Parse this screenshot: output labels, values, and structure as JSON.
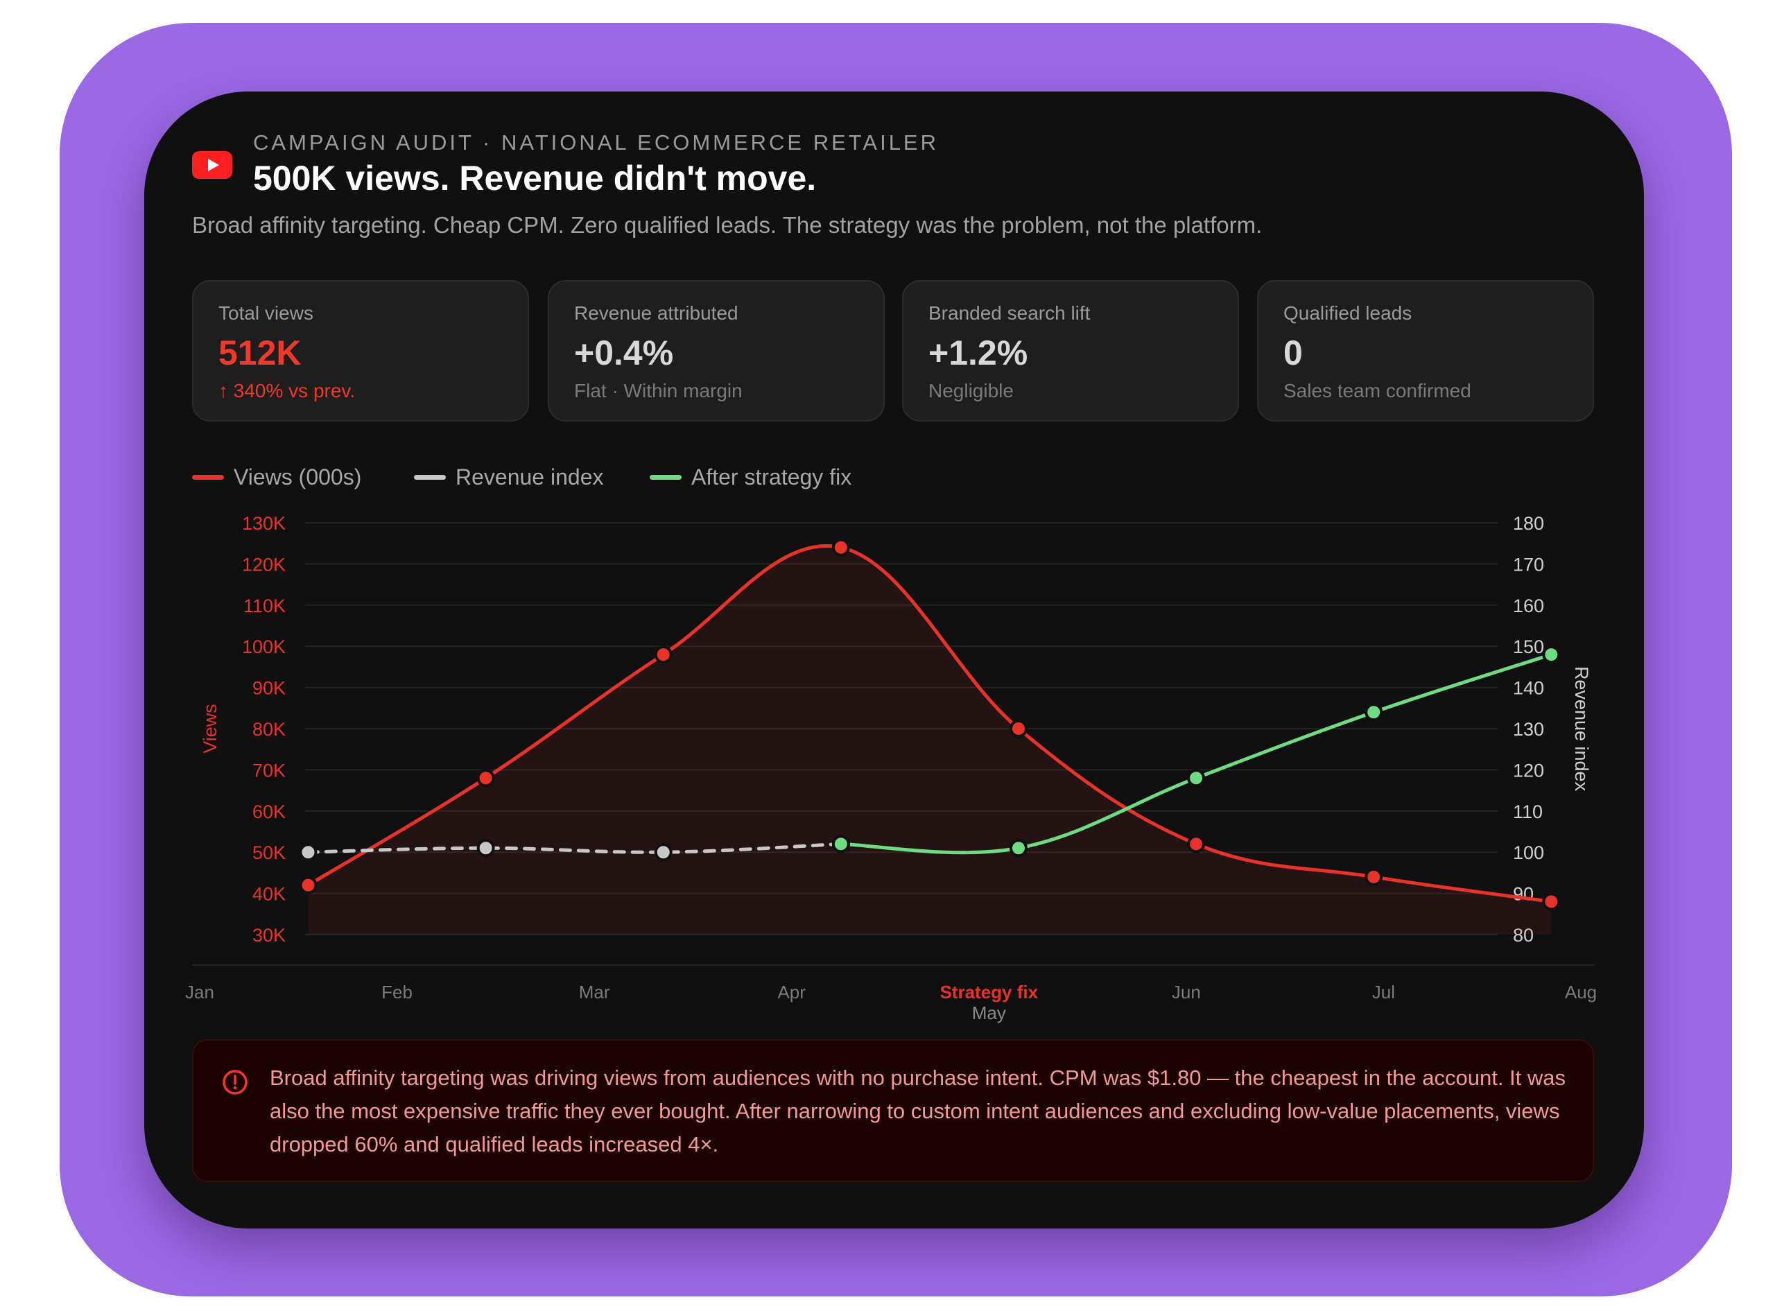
{
  "header": {
    "eyebrow": "CAMPAIGN AUDIT · NATIONAL ECOMMERCE RETAILER",
    "title": "500K views. Revenue didn't move.",
    "subtitle": "Broad affinity targeting. Cheap CPM. Zero qualified leads. The strategy was the problem, not the platform.",
    "logo_icon": "youtube-play-icon"
  },
  "stats": [
    {
      "label": "Total views",
      "value": "512K",
      "note": "↑ 340% vs prev."
    },
    {
      "label": "Revenue attributed",
      "value": "+0.4%",
      "note": "Flat · Within margin"
    },
    {
      "label": "Branded search lift",
      "value": "+1.2%",
      "note": "Negligible"
    },
    {
      "label": "Qualified leads",
      "value": "0",
      "note": "Sales team confirmed"
    }
  ],
  "legend": [
    {
      "label": "Views (000s)",
      "color": "#e8332a"
    },
    {
      "label": "Revenue index",
      "color": "#c8c8c8"
    },
    {
      "label": "After strategy fix",
      "color": "#6fdc84"
    }
  ],
  "chart_data": {
    "type": "line",
    "x_ticks": [
      "Jan",
      "Feb",
      "Mar",
      "Apr",
      "May",
      "Jun",
      "Jul",
      "Aug"
    ],
    "x_marker": {
      "label": "Strategy fix",
      "at": "May"
    },
    "left_axis": {
      "label": "Views",
      "min": 30,
      "max": 130,
      "step": 10,
      "tick_labels": [
        "30K",
        "40K",
        "50K",
        "60K",
        "70K",
        "80K",
        "90K",
        "100K",
        "110K",
        "120K",
        "130K"
      ]
    },
    "right_axis": {
      "label": "Revenue index",
      "min": 80,
      "max": 180,
      "step": 10,
      "tick_labels": [
        "80",
        "90",
        "100",
        "110",
        "120",
        "130",
        "140",
        "150",
        "160",
        "170",
        "180"
      ]
    },
    "series": [
      {
        "name": "Views (000s)",
        "axis": "left",
        "color": "#e8332a",
        "area": true,
        "points": [
          [
            0.55,
            42
          ],
          [
            1.45,
            68
          ],
          [
            2.35,
            98
          ],
          [
            3.25,
            124
          ],
          [
            4.15,
            80
          ],
          [
            5.05,
            52
          ],
          [
            5.95,
            44
          ],
          [
            6.85,
            38
          ]
        ]
      },
      {
        "name": "Revenue index",
        "axis": "right",
        "color": "#c8c8c8",
        "dashed": true,
        "points": [
          [
            0.55,
            100
          ],
          [
            1.45,
            101
          ],
          [
            2.35,
            100
          ],
          [
            3.25,
            102
          ]
        ]
      },
      {
        "name": "After strategy fix",
        "axis": "right",
        "color": "#6fdc84",
        "points": [
          [
            3.25,
            102
          ],
          [
            4.15,
            101
          ],
          [
            5.05,
            118
          ],
          [
            5.95,
            134
          ],
          [
            6.85,
            148
          ]
        ]
      }
    ],
    "grid": true
  },
  "alert": {
    "icon": "alert-circle-icon",
    "text": "Broad affinity targeting was driving views from audiences with no purchase intent. CPM was $1.80 — the cheapest in the account. It was also the most expensive traffic they ever bought. After narrowing to custom intent audiences and excluding low-value placements, views dropped 60% and qualified leads increased 4×."
  }
}
